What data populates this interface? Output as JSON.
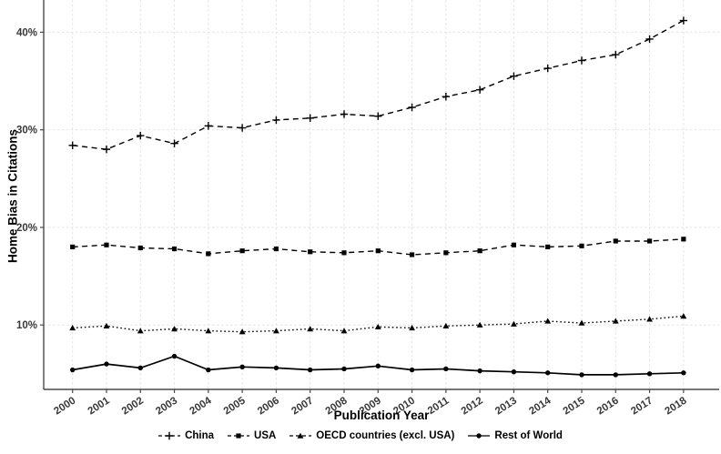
{
  "chart_data": {
    "type": "line",
    "title": "",
    "xlabel": "Publication Year",
    "ylabel": "Home Bias in Citations",
    "grid": true,
    "legend_position": "bottom",
    "xlim": [
      1999.15,
      2019.05
    ],
    "ylim": [
      3.4,
      43.3
    ],
    "x": [
      2000,
      2001,
      2002,
      2003,
      2004,
      2005,
      2006,
      2007,
      2008,
      2009,
      2010,
      2011,
      2012,
      2013,
      2014,
      2015,
      2016,
      2017,
      2018
    ],
    "x_tick_labels": [
      "2000",
      "2001",
      "2002",
      "2003",
      "2004",
      "2005",
      "2006",
      "2007",
      "2008",
      "2009",
      "2010",
      "2011",
      "2012",
      "2013",
      "2014",
      "2015",
      "2016",
      "2017",
      "2018"
    ],
    "y_ticks": [
      {
        "value": 10,
        "label": "10%"
      },
      {
        "value": 20,
        "label": "20%"
      },
      {
        "value": 30,
        "label": "30%"
      },
      {
        "value": 40,
        "label": "40%"
      }
    ],
    "series": [
      {
        "name": "China",
        "marker": "plus",
        "linestyle": "dashed",
        "color": "#000000",
        "values": [
          28.4,
          28.0,
          29.4,
          28.6,
          30.4,
          30.2,
          31.0,
          31.2,
          31.6,
          31.4,
          32.3,
          33.4,
          34.1,
          35.5,
          36.3,
          37.1,
          37.7,
          39.3,
          41.2
        ]
      },
      {
        "name": "USA",
        "marker": "square",
        "linestyle": "dashed",
        "color": "#000000",
        "values": [
          18.0,
          18.2,
          17.9,
          17.8,
          17.3,
          17.6,
          17.8,
          17.5,
          17.4,
          17.6,
          17.2,
          17.4,
          17.6,
          18.2,
          18.0,
          18.1,
          18.6,
          18.6,
          18.8
        ]
      },
      {
        "name": "OECD countries (excl. USA)",
        "marker": "triangle",
        "linestyle": "dotted",
        "color": "#000000",
        "values": [
          9.7,
          9.9,
          9.4,
          9.6,
          9.4,
          9.3,
          9.4,
          9.6,
          9.4,
          9.8,
          9.7,
          9.9,
          10.0,
          10.1,
          10.4,
          10.2,
          10.4,
          10.6,
          10.9
        ]
      },
      {
        "name": "Rest of World",
        "marker": "circle",
        "linestyle": "solid",
        "color": "#000000",
        "values": [
          5.4,
          6.0,
          5.6,
          6.8,
          5.4,
          5.7,
          5.6,
          5.4,
          5.5,
          5.8,
          5.4,
          5.5,
          5.3,
          5.2,
          5.1,
          4.9,
          4.9,
          5.0,
          5.1
        ]
      }
    ]
  },
  "colors": {
    "background": "#ffffff",
    "axis_line": "#4a4a4a",
    "grid_line": "#e3e3e3",
    "tick_text": "#383838",
    "title_text": "#000000",
    "series_color": "#000000"
  }
}
